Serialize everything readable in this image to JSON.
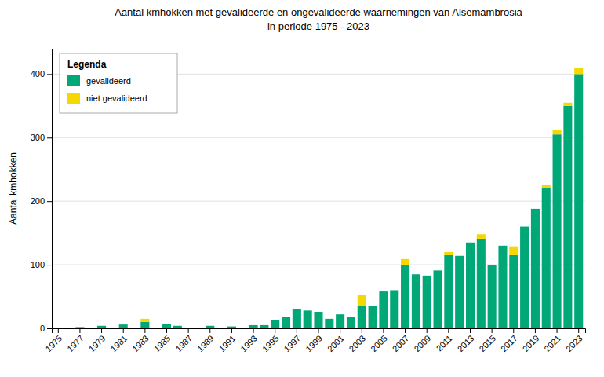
{
  "chart_data": {
    "type": "bar",
    "stacked": true,
    "title": "Aantal kmhokken met gevalideerde en ongevalideerde waarnemingen van Alsemambrosia",
    "subtitle": "in periode 1975 - 2023",
    "y_label": "Aantal kmhokken",
    "legend_title": "Legenda",
    "legend": "upper left",
    "grid": true,
    "categories": [
      "1975",
      null,
      "1977",
      null,
      "1979",
      null,
      "1981",
      null,
      "1983",
      null,
      "1985",
      null,
      "1987",
      null,
      "1989",
      null,
      "1991",
      null,
      "1993",
      null,
      "1995",
      null,
      "1997",
      null,
      "1999",
      null,
      "2001",
      null,
      "2003",
      null,
      "2005",
      null,
      "2007",
      null,
      "2009",
      null,
      "2011",
      null,
      "2013",
      null,
      "2015",
      null,
      "2017",
      null,
      "2019",
      null,
      "2021",
      null,
      "2023"
    ],
    "series": [
      {
        "name": "gevalideerd",
        "color": "#00A878",
        "values": [
          1,
          0,
          2,
          0,
          4,
          0,
          6,
          0,
          10,
          0,
          7,
          4,
          0,
          0,
          4,
          0,
          3,
          0,
          5,
          5,
          13,
          18,
          30,
          28,
          26,
          15,
          22,
          18,
          35,
          35,
          58,
          60,
          99,
          85,
          83,
          91,
          115,
          114,
          135,
          141,
          100,
          130,
          115,
          160,
          188,
          220,
          305,
          350,
          400
        ]
      },
      {
        "name": "niet gevalideerd",
        "color": "#F5D800",
        "values": [
          0,
          0,
          0,
          0,
          0,
          0,
          0,
          0,
          5,
          0,
          0,
          0,
          0,
          0,
          0,
          0,
          0,
          0,
          0,
          0,
          0,
          0,
          0,
          0,
          0,
          0,
          0,
          0,
          18,
          0,
          0,
          0,
          10,
          0,
          0,
          0,
          5,
          0,
          0,
          7,
          0,
          0,
          14,
          0,
          0,
          5,
          7,
          5,
          10
        ]
      }
    ],
    "ylim": [
      0,
      440
    ],
    "yticks": [
      0,
      100,
      200,
      300,
      400
    ]
  }
}
